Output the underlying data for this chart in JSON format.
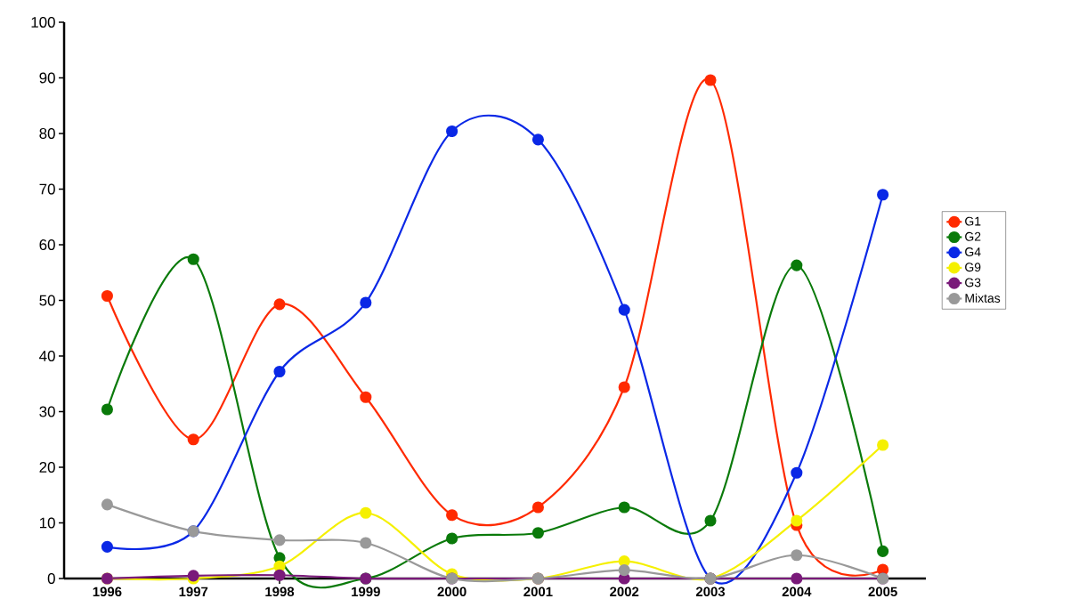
{
  "chart_data": {
    "type": "line",
    "categories": [
      "1996",
      "1997",
      "1998",
      "1999",
      "2000",
      "2001",
      "2002",
      "2003",
      "2004",
      "2005"
    ],
    "series": [
      {
        "name": "G1",
        "color": "#ff2a00",
        "values": [
          50.8,
          25,
          49.3,
          32.6,
          11.4,
          12.8,
          34.4,
          89.6,
          9.6,
          1.6
        ]
      },
      {
        "name": "G2",
        "color": "#0a7a0a",
        "values": [
          30.4,
          57.4,
          3.7,
          0,
          7.2,
          8.2,
          12.8,
          10.4,
          56.3,
          4.9
        ]
      },
      {
        "name": "G4",
        "color": "#0a28e6",
        "values": [
          5.7,
          8.5,
          37.2,
          49.6,
          80.4,
          78.9,
          48.3,
          0,
          19,
          69
        ]
      },
      {
        "name": "G9",
        "color": "#f5f000",
        "values": [
          0,
          0,
          2.2,
          11.8,
          0.8,
          0,
          3.1,
          0,
          10.4,
          24
        ]
      },
      {
        "name": "G3",
        "color": "#7a1a7a",
        "values": [
          0,
          0.5,
          0.6,
          0,
          0,
          0,
          0,
          0,
          0,
          0
        ]
      },
      {
        "name": "Mixtas",
        "color": "#999999",
        "values": [
          13.3,
          8.5,
          6.9,
          6.4,
          0,
          0,
          1.5,
          0,
          4.2,
          0
        ]
      }
    ],
    "ylim": [
      0,
      100
    ],
    "yticks": [
      0,
      10,
      20,
      30,
      40,
      50,
      60,
      70,
      80,
      90,
      100
    ],
    "grid": false,
    "legend": "right",
    "marker": "circle",
    "line_style": "solid"
  }
}
